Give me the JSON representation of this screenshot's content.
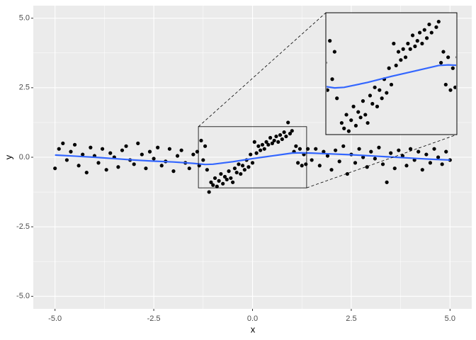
{
  "chart_data": {
    "type": "scatter",
    "x_label": "x",
    "y_label": "y",
    "xlim": [
      -5.55,
      5.55
    ],
    "ylim": [
      -5.45,
      5.45
    ],
    "xticks": [
      {
        "value": -5,
        "label": "-5.0"
      },
      -2.5,
      {
        "value": 0,
        "label": "0.0"
      },
      2.5,
      {
        "value": 5,
        "label": "5.0"
      }
    ],
    "yticks": [
      {
        "value": -5,
        "label": "-5.0"
      },
      -2.5,
      {
        "value": 0,
        "label": "0.0"
      },
      2.5,
      {
        "value": 5,
        "label": "5.0"
      }
    ],
    "grid": true,
    "points": {
      "color": "#000000",
      "x": [
        -5.0,
        -4.9,
        -4.8,
        -4.7,
        -4.6,
        -4.5,
        -4.4,
        -4.3,
        -4.2,
        -4.1,
        -4.0,
        -3.9,
        -3.8,
        -3.7,
        -3.6,
        -3.5,
        -3.4,
        -3.3,
        -3.2,
        -3.1,
        -3.0,
        -2.9,
        -2.8,
        -2.7,
        -2.6,
        -2.5,
        -2.4,
        -2.3,
        -2.2,
        -2.1,
        -2.0,
        -1.9,
        -1.8,
        -1.7,
        -1.6,
        -1.5,
        -1.4,
        -1.35,
        -1.3,
        -1.25,
        -1.2,
        -1.15,
        -1.1,
        -1.05,
        -1.0,
        -0.95,
        -0.9,
        -0.85,
        -0.8,
        -0.75,
        -0.7,
        -0.65,
        -0.6,
        -0.55,
        -0.5,
        -0.45,
        -0.4,
        -0.35,
        -0.3,
        -0.25,
        -0.2,
        -0.15,
        -0.1,
        -0.05,
        0.0,
        0.05,
        0.1,
        0.15,
        0.2,
        0.25,
        0.3,
        0.35,
        0.4,
        0.45,
        0.5,
        0.55,
        0.6,
        0.65,
        0.7,
        0.75,
        0.8,
        0.85,
        0.9,
        0.95,
        1.0,
        1.05,
        1.1,
        1.15,
        1.2,
        1.25,
        1.3,
        1.35,
        1.4,
        1.5,
        1.6,
        1.7,
        1.8,
        1.9,
        2.0,
        2.1,
        2.2,
        2.3,
        2.4,
        2.5,
        2.6,
        2.7,
        2.8,
        2.9,
        3.0,
        3.1,
        3.2,
        3.3,
        3.4,
        3.5,
        3.6,
        3.7,
        3.8,
        3.9,
        4.0,
        4.1,
        4.2,
        4.3,
        4.4,
        4.5,
        4.6,
        4.7,
        4.8,
        4.9,
        5.0
      ],
      "y": [
        -0.4,
        0.3,
        0.5,
        -0.1,
        0.2,
        0.45,
        -0.3,
        0.1,
        -0.55,
        0.35,
        0.05,
        -0.2,
        0.3,
        -0.45,
        0.15,
        0.0,
        -0.35,
        0.25,
        0.4,
        -0.1,
        -0.25,
        0.5,
        0.1,
        -0.4,
        0.2,
        -0.05,
        0.35,
        -0.3,
        -0.15,
        0.3,
        -0.5,
        0.05,
        0.25,
        -0.2,
        -0.4,
        0.1,
        0.2,
        -0.3,
        0.6,
        -0.1,
        0.4,
        -0.45,
        -1.25,
        -0.9,
        -1.0,
        -0.75,
        -1.05,
        -0.85,
        -0.6,
        -0.95,
        -0.7,
        -0.8,
        -0.5,
        -0.75,
        -0.9,
        -0.4,
        -0.55,
        -0.25,
        -0.6,
        -0.3,
        -0.45,
        -0.1,
        -0.35,
        0.1,
        -0.2,
        0.55,
        0.15,
        0.4,
        0.25,
        0.45,
        0.3,
        0.55,
        0.45,
        0.7,
        0.5,
        0.6,
        0.75,
        0.55,
        0.8,
        0.65,
        0.9,
        0.75,
        1.25,
        0.85,
        0.95,
        0.2,
        0.4,
        -0.2,
        0.3,
        -0.3,
        0.1,
        -0.25,
        0.3,
        -0.1,
        0.3,
        -0.3,
        0.2,
        0.05,
        -0.45,
        0.25,
        -0.15,
        0.4,
        -0.6,
        0.1,
        -0.2,
        0.3,
        0.0,
        -0.35,
        0.2,
        -0.05,
        0.35,
        -0.25,
        -0.9,
        0.15,
        -0.4,
        0.25,
        0.05,
        -0.3,
        0.3,
        -0.1,
        0.2,
        -0.45,
        0.1,
        -0.2,
        0.3,
        0.0,
        -0.25,
        0.2,
        -0.1
      ]
    },
    "smooth": {
      "color": "#3366ff",
      "x": [
        -5.0,
        -4.5,
        -4.0,
        -3.5,
        -3.0,
        -2.5,
        -2.0,
        -1.5,
        -1.2,
        -1.0,
        -0.5,
        0.0,
        0.5,
        1.0,
        1.2,
        1.5,
        2.0,
        2.5,
        3.0,
        3.5,
        4.0,
        4.5,
        5.0
      ],
      "y": [
        0.08,
        0.04,
        0.0,
        -0.05,
        -0.1,
        -0.14,
        -0.17,
        -0.22,
        -0.26,
        -0.25,
        -0.16,
        -0.05,
        0.05,
        0.15,
        0.16,
        0.15,
        0.12,
        0.09,
        0.05,
        0.01,
        -0.03,
        -0.07,
        -0.1
      ]
    },
    "zoom": {
      "xlim": [
        -1.37,
        1.37
      ],
      "ylim": [
        -1.1,
        1.1
      ]
    }
  }
}
